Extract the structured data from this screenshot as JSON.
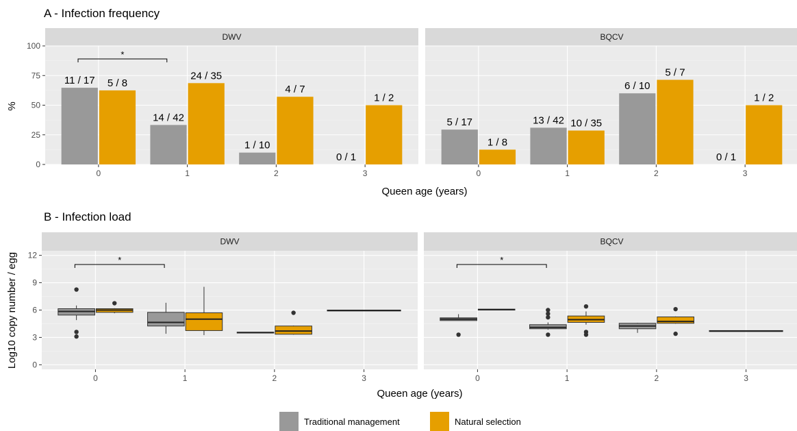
{
  "chart_data": [
    {
      "type": "bar",
      "title": "A - Infection frequency",
      "xlabel": "Queen age (years)",
      "ylabel": "%",
      "ylim": [
        0,
        100
      ],
      "yticks": [
        0,
        25,
        50,
        75,
        100
      ],
      "categories": [
        "0",
        "1",
        "2",
        "3"
      ],
      "grid": true,
      "facets": [
        {
          "name": "DWV",
          "series": [
            {
              "name": "Traditional management",
              "values": [
                64.7,
                33.3,
                10.0,
                0.0
              ],
              "labels": [
                "11 / 17",
                "14 / 42",
                "1 / 10",
                "0 / 1"
              ]
            },
            {
              "name": "Natural selection",
              "values": [
                62.5,
                68.6,
                57.1,
                50.0
              ],
              "labels": [
                "5 / 8",
                "24 / 35",
                "4 / 7",
                "1 / 2"
              ]
            }
          ],
          "annotations": [
            {
              "from": "0",
              "to": "1",
              "label": "*",
              "y": 89
            }
          ]
        },
        {
          "name": "BQCV",
          "series": [
            {
              "name": "Traditional management",
              "values": [
                29.4,
                31.0,
                60.0,
                0.0
              ],
              "labels": [
                "5 / 17",
                "13 / 42",
                "6 / 10",
                "0 / 1"
              ]
            },
            {
              "name": "Natural selection",
              "values": [
                12.5,
                28.6,
                71.4,
                50.0
              ],
              "labels": [
                "1 / 8",
                "10 / 35",
                "5 / 7",
                "1 / 2"
              ]
            }
          ],
          "annotations": []
        }
      ]
    },
    {
      "type": "box",
      "title": "B - Infection load",
      "xlabel": "Queen age (years)",
      "ylabel": "Log10 copy number / egg",
      "ylim": [
        -0.5,
        12.5
      ],
      "yticks": [
        0,
        3,
        6,
        9,
        12
      ],
      "categories": [
        "0",
        "1",
        "2",
        "3"
      ],
      "grid": true,
      "facets": [
        {
          "name": "DWV",
          "series": [
            {
              "name": "Traditional management",
              "boxes": [
                {
                  "q1": 5.45,
                  "median": 5.85,
                  "q3": 6.15,
                  "whisker_low": 4.9,
                  "whisker_high": 6.5,
                  "outliers": [
                    8.25,
                    3.6,
                    3.1
                  ]
                },
                {
                  "q1": 4.25,
                  "median": 4.65,
                  "q3": 5.75,
                  "whisker_low": 3.4,
                  "whisker_high": 6.8,
                  "outliers": []
                },
                {
                  "q1": 3.48,
                  "median": 3.52,
                  "q3": 3.58,
                  "whisker_low": 3.48,
                  "whisker_high": 3.58,
                  "outliers": []
                },
                {
                  "q1": 5.9,
                  "median": 5.95,
                  "q3": 6.0,
                  "whisker_low": 5.9,
                  "whisker_high": 6.0,
                  "outliers": []
                }
              ]
            },
            {
              "name": "Natural selection",
              "boxes": [
                {
                  "q1": 5.75,
                  "median": 6.0,
                  "q3": 6.15,
                  "whisker_low": 5.65,
                  "whisker_high": 6.2,
                  "outliers": [
                    6.75
                  ]
                },
                {
                  "q1": 3.75,
                  "median": 5.0,
                  "q3": 5.7,
                  "whisker_low": 3.25,
                  "whisker_high": 8.55,
                  "outliers": []
                },
                {
                  "q1": 3.35,
                  "median": 3.7,
                  "q3": 4.25,
                  "whisker_low": 3.3,
                  "whisker_high": 4.3,
                  "outliers": [
                    5.7
                  ]
                },
                null
              ]
            }
          ],
          "annotations": [
            {
              "from": "0",
              "to": "1",
              "label": "*",
              "y": 11.0
            }
          ]
        },
        {
          "name": "BQCV",
          "series": [
            {
              "name": "Traditional management",
              "boxes": [
                {
                  "q1": 4.85,
                  "median": 5.0,
                  "q3": 5.15,
                  "whisker_low": 4.85,
                  "whisker_high": 5.55,
                  "outliers": [
                    3.3
                  ]
                },
                {
                  "q1": 3.95,
                  "median": 4.1,
                  "q3": 4.4,
                  "whisker_low": 3.85,
                  "whisker_high": 4.65,
                  "outliers": [
                    6.0,
                    5.6,
                    5.2,
                    3.3
                  ]
                },
                {
                  "q1": 3.95,
                  "median": 4.25,
                  "q3": 4.55,
                  "whisker_low": 3.5,
                  "whisker_high": 4.6,
                  "outliers": []
                },
                {
                  "q1": 3.65,
                  "median": 3.7,
                  "q3": 3.75,
                  "whisker_low": 3.65,
                  "whisker_high": 3.75,
                  "outliers": []
                }
              ]
            },
            {
              "name": "Natural selection",
              "boxes": [
                {
                  "q1": 6.0,
                  "median": 6.05,
                  "q3": 6.1,
                  "whisker_low": 6.0,
                  "whisker_high": 6.1,
                  "outliers": []
                },
                {
                  "q1": 4.65,
                  "median": 4.95,
                  "q3": 5.35,
                  "whisker_low": 4.4,
                  "whisker_high": 5.85,
                  "outliers": [
                    6.4,
                    3.6,
                    3.3
                  ]
                },
                {
                  "q1": 4.55,
                  "median": 4.75,
                  "q3": 5.25,
                  "whisker_low": 4.5,
                  "whisker_high": 5.3,
                  "outliers": [
                    6.1,
                    3.4
                  ]
                },
                null
              ]
            }
          ],
          "annotations": [
            {
              "from": "0",
              "to": "1",
              "label": "*",
              "y": 11.0
            }
          ]
        }
      ]
    }
  ],
  "legend": {
    "position": "bottom",
    "items": [
      {
        "name": "Traditional management",
        "color": "#999999"
      },
      {
        "name": "Natural selection",
        "color": "#E69F00"
      }
    ]
  },
  "colors": {
    "traditional": "#999999",
    "natural": "#E69F00",
    "panel_bg": "#EBEBEB",
    "strip_bg": "#D9D9D9",
    "grid_major": "#FFFFFF"
  }
}
